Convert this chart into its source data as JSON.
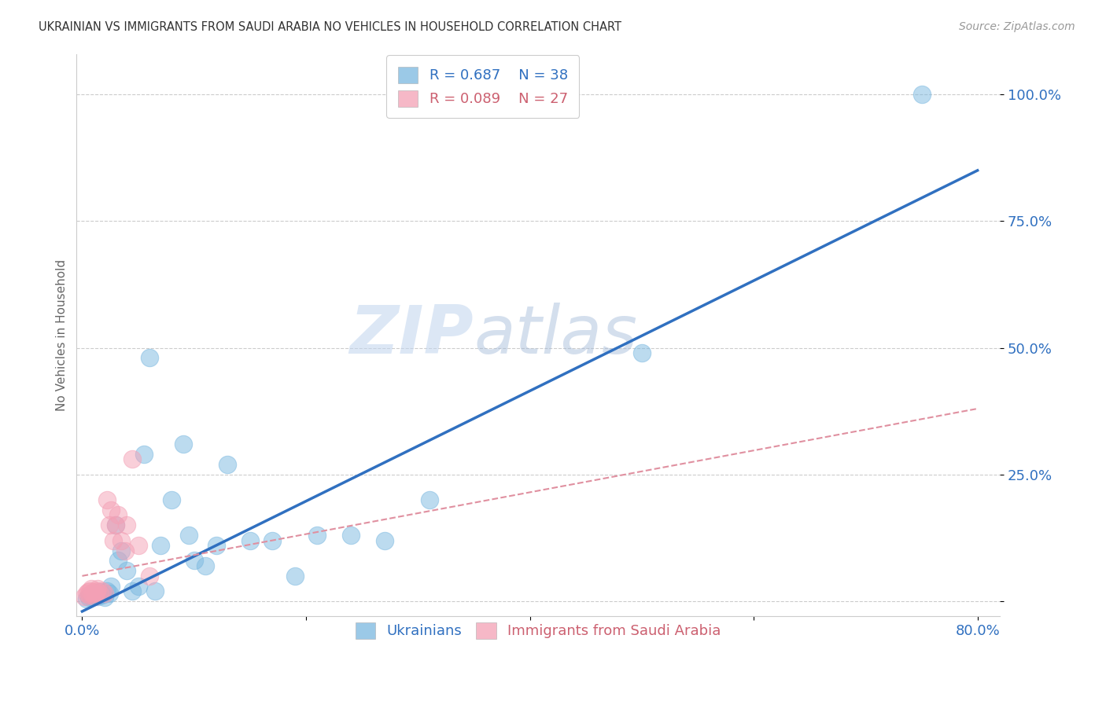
{
  "title": "UKRAINIAN VS IMMIGRANTS FROM SAUDI ARABIA NO VEHICLES IN HOUSEHOLD CORRELATION CHART",
  "source": "Source: ZipAtlas.com",
  "ylabel_label": "No Vehicles in Household",
  "legend_blue_r": "R = 0.687",
  "legend_blue_n": "N = 38",
  "legend_pink_r": "R = 0.089",
  "legend_pink_n": "N = 27",
  "blue_scatter_x": [
    0.004,
    0.006,
    0.008,
    0.01,
    0.012,
    0.014,
    0.016,
    0.018,
    0.02,
    0.022,
    0.024,
    0.026,
    0.03,
    0.032,
    0.035,
    0.04,
    0.045,
    0.05,
    0.055,
    0.06,
    0.065,
    0.07,
    0.08,
    0.09,
    0.095,
    0.1,
    0.11,
    0.12,
    0.13,
    0.15,
    0.17,
    0.19,
    0.21,
    0.24,
    0.27,
    0.31,
    0.5,
    0.75
  ],
  "blue_scatter_y": [
    0.005,
    0.008,
    0.01,
    0.012,
    0.015,
    0.01,
    0.018,
    0.012,
    0.008,
    0.02,
    0.015,
    0.03,
    0.15,
    0.08,
    0.1,
    0.06,
    0.02,
    0.03,
    0.29,
    0.48,
    0.02,
    0.11,
    0.2,
    0.31,
    0.13,
    0.08,
    0.07,
    0.11,
    0.27,
    0.12,
    0.12,
    0.05,
    0.13,
    0.13,
    0.12,
    0.2,
    0.49,
    1.0
  ],
  "pink_scatter_x": [
    0.002,
    0.004,
    0.005,
    0.006,
    0.007,
    0.008,
    0.009,
    0.01,
    0.011,
    0.012,
    0.013,
    0.014,
    0.016,
    0.018,
    0.02,
    0.022,
    0.024,
    0.026,
    0.028,
    0.03,
    0.032,
    0.035,
    0.038,
    0.04,
    0.045,
    0.05,
    0.06
  ],
  "pink_scatter_y": [
    0.01,
    0.015,
    0.018,
    0.012,
    0.02,
    0.025,
    0.015,
    0.018,
    0.01,
    0.015,
    0.02,
    0.025,
    0.015,
    0.02,
    0.015,
    0.2,
    0.15,
    0.18,
    0.12,
    0.15,
    0.17,
    0.12,
    0.1,
    0.15,
    0.28,
    0.11,
    0.05
  ],
  "blue_line_x0": 0.0,
  "blue_line_y0": -0.02,
  "blue_line_x1": 0.8,
  "blue_line_y1": 0.85,
  "pink_line_x0": 0.0,
  "pink_line_y0": 0.05,
  "pink_line_x1": 0.8,
  "pink_line_y1": 0.38,
  "blue_color": "#7ab8e0",
  "pink_color": "#f4a0b5",
  "blue_line_color": "#3070c0",
  "pink_line_color": "#e090a0",
  "watermark_zip": "ZIP",
  "watermark_atlas": "atlas",
  "background_color": "#ffffff",
  "grid_color": "#cccccc",
  "xlim": [
    -0.005,
    0.82
  ],
  "ylim": [
    -0.03,
    1.08
  ],
  "xtick_vals": [
    0.0,
    0.2,
    0.4,
    0.6,
    0.8
  ],
  "xtick_labels": [
    "0.0%",
    "",
    "",
    "",
    "80.0%"
  ],
  "ytick_vals": [
    0.0,
    0.25,
    0.5,
    0.75,
    1.0
  ],
  "ytick_labels": [
    "",
    "25.0%",
    "50.0%",
    "75.0%",
    "100.0%"
  ]
}
